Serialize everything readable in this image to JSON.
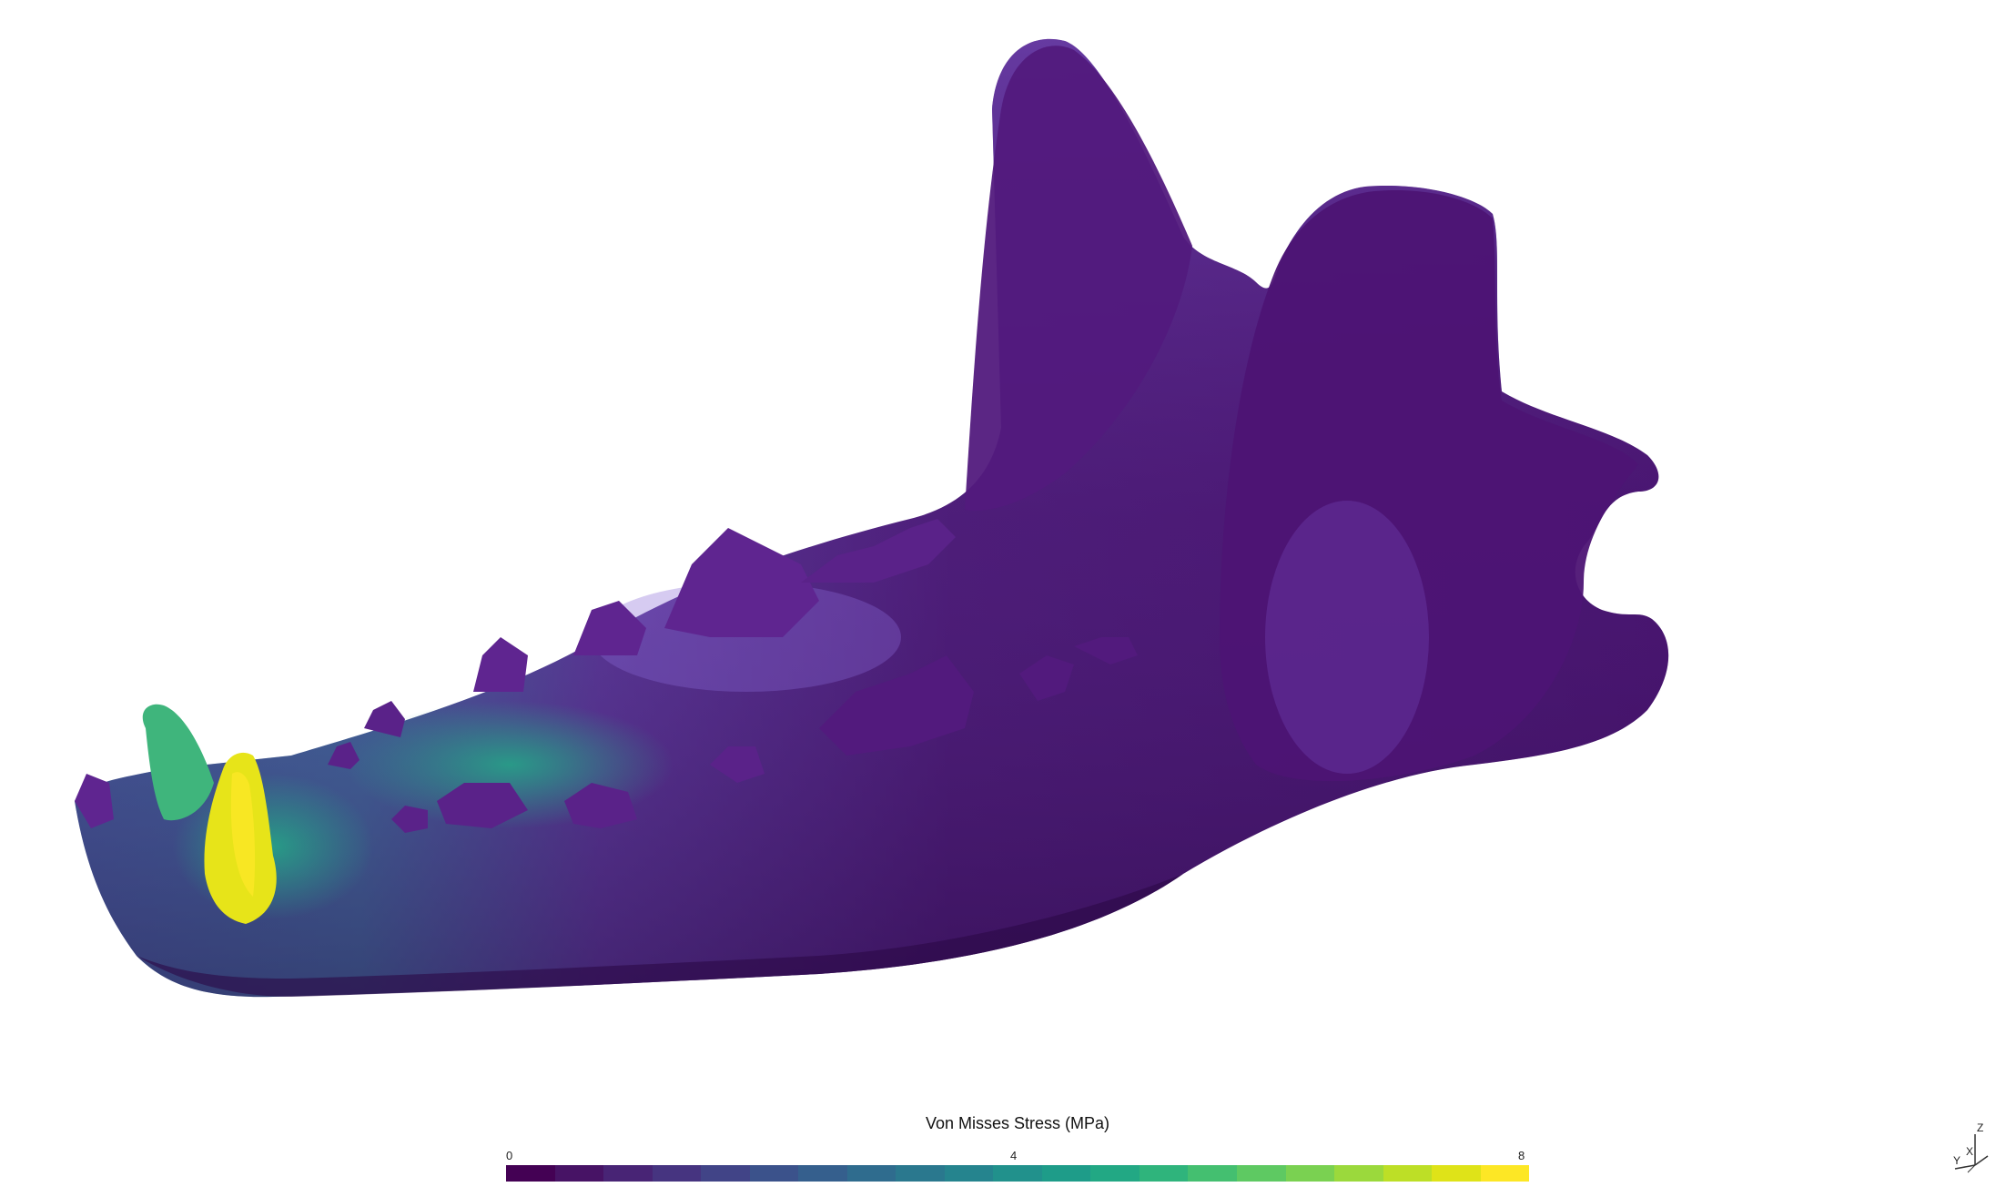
{
  "legend": {
    "title": "Von Misses Stress (MPa)",
    "tick_min": "0",
    "tick_mid": "4",
    "tick_max": "8",
    "colormap": [
      "#440154",
      "#471365",
      "#482475",
      "#463480",
      "#414487",
      "#3b528b",
      "#355f8d",
      "#2f6c8e",
      "#2a788e",
      "#25848e",
      "#21918c",
      "#1e9c89",
      "#22a884",
      "#2fb47c",
      "#44bf70",
      "#5ec962",
      "#7ad151",
      "#9bd93c",
      "#bddf26",
      "#dfe318",
      "#fde725"
    ]
  },
  "model": {
    "name_icon": "mandible-mesh",
    "base_color": "#4b0f6e",
    "highlight_color": "#fde725"
  },
  "orientation_widget": {
    "axis_z": "Z",
    "axis_x": "X",
    "axis_y": "Y"
  }
}
